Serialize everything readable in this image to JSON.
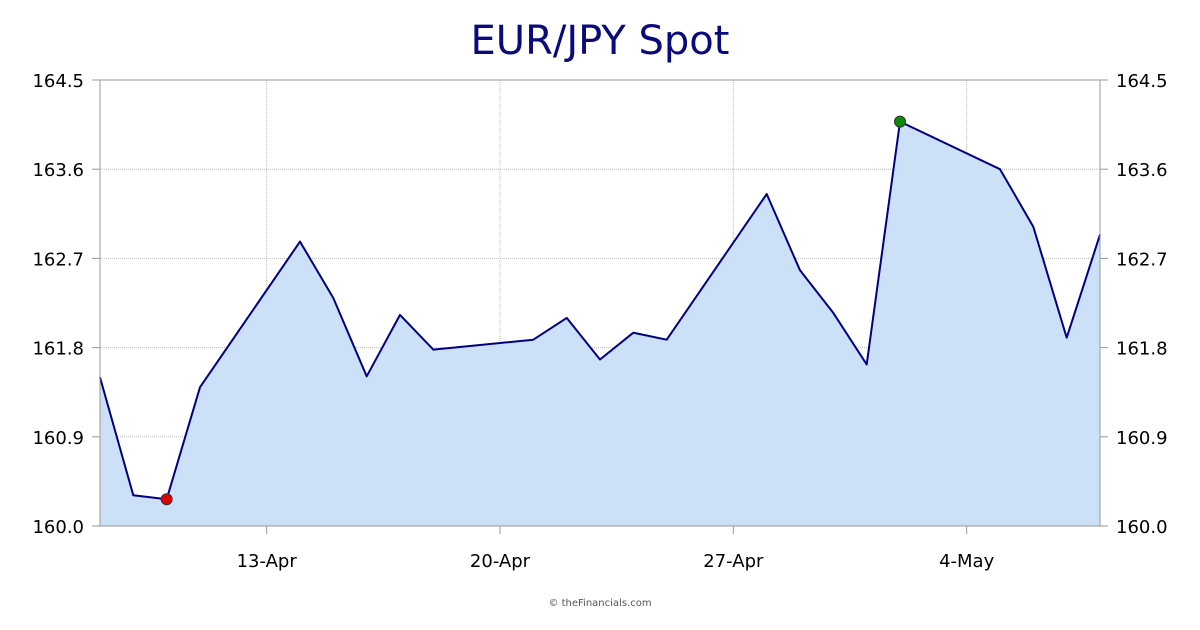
{
  "chart_data": {
    "type": "area",
    "title": "EUR/JPY Spot",
    "xlabel": "",
    "ylabel": "",
    "x_tick_labels": [
      {
        "date": "2020-04-13",
        "label": "13-Apr"
      },
      {
        "date": "2020-04-20",
        "label": "20-Apr"
      },
      {
        "date": "2020-04-27",
        "label": "27-Apr"
      },
      {
        "date": "2020-05-04",
        "label": "4-May"
      }
    ],
    "y_ticks": [
      "160.0",
      "160.9",
      "161.8",
      "162.7",
      "163.6",
      "164.5"
    ],
    "ylim": [
      160.0,
      164.5
    ],
    "xlim": [
      "2020-04-08",
      "2020-05-08"
    ],
    "grid": true,
    "y_axis_both_sides": true,
    "series": [
      {
        "points": [
          {
            "x": "2020-04-08",
            "y": 161.5
          },
          {
            "x": "2020-04-09",
            "y": 160.31
          },
          {
            "x": "2020-04-10",
            "y": 160.27
          },
          {
            "x": "2020-04-11",
            "y": 161.4
          },
          {
            "x": "2020-04-14",
            "y": 162.87
          },
          {
            "x": "2020-04-15",
            "y": 162.3
          },
          {
            "x": "2020-04-16",
            "y": 161.51
          },
          {
            "x": "2020-04-17",
            "y": 162.13
          },
          {
            "x": "2020-04-18",
            "y": 161.78
          },
          {
            "x": "2020-04-21",
            "y": 161.88
          },
          {
            "x": "2020-04-22",
            "y": 162.1
          },
          {
            "x": "2020-04-23",
            "y": 161.68
          },
          {
            "x": "2020-04-24",
            "y": 161.95
          },
          {
            "x": "2020-04-25",
            "y": 161.88
          },
          {
            "x": "2020-04-28",
            "y": 163.35
          },
          {
            "x": "2020-04-29",
            "y": 162.58
          },
          {
            "x": "2020-04-30",
            "y": 162.15
          },
          {
            "x": "2020-05-01",
            "y": 161.63
          },
          {
            "x": "2020-05-02",
            "y": 164.08
          },
          {
            "x": "2020-05-05",
            "y": 163.6
          },
          {
            "x": "2020-05-06",
            "y": 163.02
          },
          {
            "x": "2020-05-07",
            "y": 161.9
          },
          {
            "x": "2020-05-08",
            "y": 162.94
          }
        ]
      }
    ],
    "markers": [
      {
        "kind": "low",
        "x": "2020-04-10",
        "y": 160.27,
        "color": "#e00000"
      },
      {
        "kind": "high",
        "x": "2020-05-02",
        "y": 164.08,
        "color": "#0a8a0a"
      }
    ],
    "colors": {
      "line": "#000080",
      "fill": "#cce0f7",
      "grid": "#bbbbbb",
      "axis": "#999999",
      "title": "#0a0a7a"
    }
  },
  "footer": {
    "credit": "© theFinancials.com"
  }
}
